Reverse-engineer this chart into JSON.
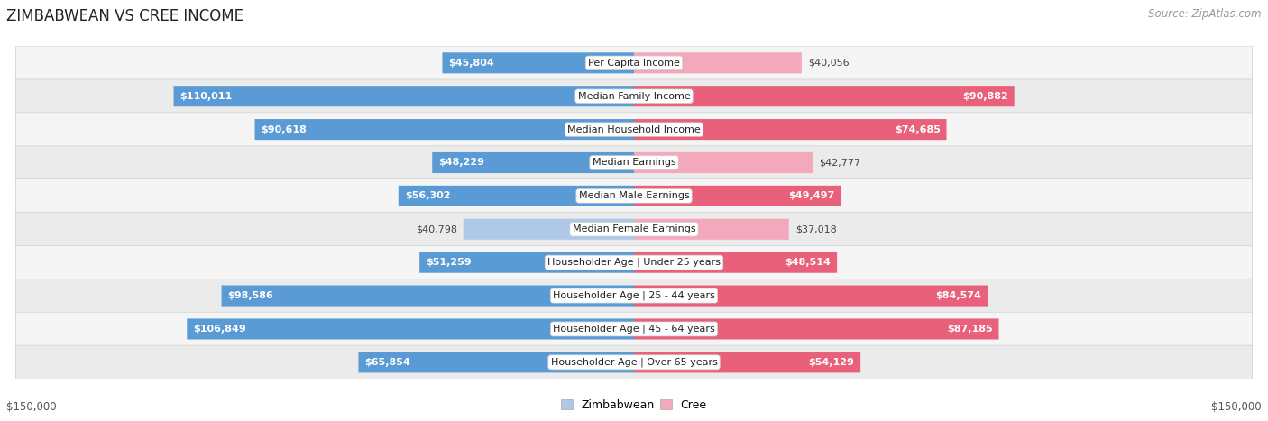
{
  "title": "ZIMBABWEAN VS CREE INCOME",
  "source": "Source: ZipAtlas.com",
  "categories": [
    "Per Capita Income",
    "Median Family Income",
    "Median Household Income",
    "Median Earnings",
    "Median Male Earnings",
    "Median Female Earnings",
    "Householder Age | Under 25 years",
    "Householder Age | 25 - 44 years",
    "Householder Age | 45 - 64 years",
    "Householder Age | Over 65 years"
  ],
  "zimbabwean_values": [
    45804,
    110011,
    90618,
    48229,
    56302,
    40798,
    51259,
    98586,
    106849,
    65854
  ],
  "cree_values": [
    40056,
    90882,
    74685,
    42777,
    49497,
    37018,
    48514,
    84574,
    87185,
    54129
  ],
  "zim_color_light": "#adc8e8",
  "zim_color_dark": "#5b9bd5",
  "cree_color_light": "#f4a8bc",
  "cree_color_dark": "#e8607a",
  "max_value": 150000,
  "inside_threshold": 0.3,
  "row_bg_light": "#f5f5f5",
  "row_bg_dark": "#ebebeb",
  "axis_label": "$150,000",
  "title_fontsize": 12,
  "source_fontsize": 8.5,
  "bar_label_fontsize": 8,
  "category_fontsize": 8
}
